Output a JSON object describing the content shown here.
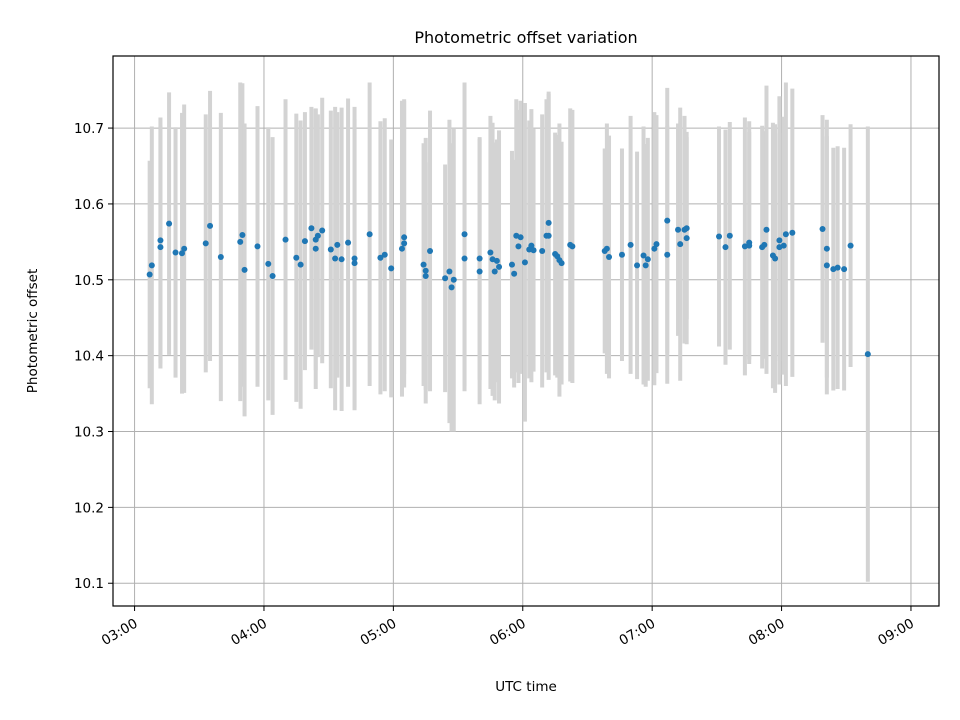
{
  "chart_data": {
    "type": "scatter",
    "title": "Photometric offset variation",
    "xlabel": "UTC time",
    "ylabel": "Photometric offset",
    "x_ticks": [
      "03:00",
      "04:00",
      "05:00",
      "06:00",
      "07:00",
      "08:00",
      "09:00"
    ],
    "y_ticks": [
      "10.1",
      "10.2",
      "10.3",
      "10.4",
      "10.5",
      "10.6",
      "10.7"
    ],
    "xlim": [
      "02:50",
      "09:13"
    ],
    "ylim": [
      10.07,
      10.795
    ],
    "grid": true,
    "colors": {
      "points": "#1f77b4",
      "errorbars": "#d3d3d3",
      "grid": "#b0b0b0"
    },
    "series": [
      {
        "points": [
          {
            "t": "03:07",
            "y": 10.507,
            "err": 0.15
          },
          {
            "t": "03:08",
            "y": 10.519,
            "err": 0.183
          },
          {
            "t": "03:12",
            "y": 10.552,
            "err": 0.162
          },
          {
            "t": "03:12",
            "y": 10.543,
            "err": 0.16
          },
          {
            "t": "03:16",
            "y": 10.574,
            "err": 0.173
          },
          {
            "t": "03:19",
            "y": 10.536,
            "err": 0.165
          },
          {
            "t": "03:22",
            "y": 10.535,
            "err": 0.185
          },
          {
            "t": "03:23",
            "y": 10.541,
            "err": 0.19
          },
          {
            "t": "03:33",
            "y": 10.548,
            "err": 0.17
          },
          {
            "t": "03:35",
            "y": 10.571,
            "err": 0.178
          },
          {
            "t": "03:40",
            "y": 10.53,
            "err": 0.19
          },
          {
            "t": "03:49",
            "y": 10.55,
            "err": 0.21
          },
          {
            "t": "03:50",
            "y": 10.559,
            "err": 0.2
          },
          {
            "t": "03:51",
            "y": 10.513,
            "err": 0.193
          },
          {
            "t": "03:57",
            "y": 10.544,
            "err": 0.185
          },
          {
            "t": "04:02",
            "y": 10.521,
            "err": 0.18
          },
          {
            "t": "04:04",
            "y": 10.505,
            "err": 0.183
          },
          {
            "t": "04:10",
            "y": 10.553,
            "err": 0.185
          },
          {
            "t": "04:15",
            "y": 10.529,
            "err": 0.19
          },
          {
            "t": "04:17",
            "y": 10.52,
            "err": 0.19
          },
          {
            "t": "04:19",
            "y": 10.551,
            "err": 0.17
          },
          {
            "t": "04:22",
            "y": 10.568,
            "err": 0.16
          },
          {
            "t": "04:24",
            "y": 10.541,
            "err": 0.185
          },
          {
            "t": "04:24",
            "y": 10.553,
            "err": 0.172
          },
          {
            "t": "04:25",
            "y": 10.558,
            "err": 0.16
          },
          {
            "t": "04:27",
            "y": 10.565,
            "err": 0.175
          },
          {
            "t": "04:31",
            "y": 10.54,
            "err": 0.183
          },
          {
            "t": "04:33",
            "y": 10.528,
            "err": 0.2
          },
          {
            "t": "04:34",
            "y": 10.546,
            "err": 0.175
          },
          {
            "t": "04:36",
            "y": 10.527,
            "err": 0.2
          },
          {
            "t": "04:39",
            "y": 10.549,
            "err": 0.19
          },
          {
            "t": "04:42",
            "y": 10.528,
            "err": 0.2
          },
          {
            "t": "04:42",
            "y": 10.522,
            "err": 0.19
          },
          {
            "t": "04:49",
            "y": 10.56,
            "err": 0.2
          },
          {
            "t": "04:54",
            "y": 10.529,
            "err": 0.18
          },
          {
            "t": "04:56",
            "y": 10.533,
            "err": 0.18
          },
          {
            "t": "04:59",
            "y": 10.515,
            "err": 0.17
          },
          {
            "t": "05:04",
            "y": 10.541,
            "err": 0.195
          },
          {
            "t": "05:05",
            "y": 10.548,
            "err": 0.19
          },
          {
            "t": "05:05",
            "y": 10.556,
            "err": 0.18
          },
          {
            "t": "05:14",
            "y": 10.52,
            "err": 0.16
          },
          {
            "t": "05:15",
            "y": 10.512,
            "err": 0.175
          },
          {
            "t": "05:15",
            "y": 10.505,
            "err": 0.15
          },
          {
            "t": "05:17",
            "y": 10.538,
            "err": 0.185
          },
          {
            "t": "05:24",
            "y": 10.502,
            "err": 0.15
          },
          {
            "t": "05:26",
            "y": 10.511,
            "err": 0.2
          },
          {
            "t": "05:27",
            "y": 10.49,
            "err": 0.19
          },
          {
            "t": "05:28",
            "y": 10.5,
            "err": 0.2
          },
          {
            "t": "05:33",
            "y": 10.56,
            "err": 0.2
          },
          {
            "t": "05:33",
            "y": 10.528,
            "err": 0.175
          },
          {
            "t": "05:40",
            "y": 10.511,
            "err": 0.175
          },
          {
            "t": "05:40",
            "y": 10.528,
            "err": 0.16
          },
          {
            "t": "05:45",
            "y": 10.536,
            "err": 0.18
          },
          {
            "t": "05:46",
            "y": 10.527,
            "err": 0.18
          },
          {
            "t": "05:47",
            "y": 10.511,
            "err": 0.17
          },
          {
            "t": "05:48",
            "y": 10.525,
            "err": 0.16
          },
          {
            "t": "05:49",
            "y": 10.517,
            "err": 0.18
          },
          {
            "t": "05:55",
            "y": 10.52,
            "err": 0.15
          },
          {
            "t": "05:56",
            "y": 10.508,
            "err": 0.15
          },
          {
            "t": "05:57",
            "y": 10.558,
            "err": 0.18
          },
          {
            "t": "05:58",
            "y": 10.544,
            "err": 0.18
          },
          {
            "t": "05:59",
            "y": 10.556,
            "err": 0.18
          },
          {
            "t": "06:01",
            "y": 10.523,
            "err": 0.21
          },
          {
            "t": "06:03",
            "y": 10.54,
            "err": 0.17
          },
          {
            "t": "06:04",
            "y": 10.545,
            "err": 0.18
          },
          {
            "t": "06:05",
            "y": 10.539,
            "err": 0.16
          },
          {
            "t": "06:09",
            "y": 10.538,
            "err": 0.18
          },
          {
            "t": "06:11",
            "y": 10.558,
            "err": 0.18
          },
          {
            "t": "06:12",
            "y": 10.575,
            "err": 0.17
          },
          {
            "t": "06:12",
            "y": 10.558,
            "err": 0.19
          },
          {
            "t": "06:15",
            "y": 10.534,
            "err": 0.16
          },
          {
            "t": "06:16",
            "y": 10.531,
            "err": 0.16
          },
          {
            "t": "06:17",
            "y": 10.526,
            "err": 0.18
          },
          {
            "t": "06:18",
            "y": 10.522,
            "err": 0.16
          },
          {
            "t": "06:22",
            "y": 10.546,
            "err": 0.18
          },
          {
            "t": "06:23",
            "y": 10.544,
            "err": 0.18
          },
          {
            "t": "06:38",
            "y": 10.538,
            "err": 0.135
          },
          {
            "t": "06:39",
            "y": 10.541,
            "err": 0.165
          },
          {
            "t": "06:40",
            "y": 10.53,
            "err": 0.16
          },
          {
            "t": "06:46",
            "y": 10.533,
            "err": 0.14
          },
          {
            "t": "06:50",
            "y": 10.546,
            "err": 0.17
          },
          {
            "t": "06:53",
            "y": 10.519,
            "err": 0.15
          },
          {
            "t": "06:56",
            "y": 10.532,
            "err": 0.17
          },
          {
            "t": "06:57",
            "y": 10.519,
            "err": 0.16
          },
          {
            "t": "06:58",
            "y": 10.527,
            "err": 0.16
          },
          {
            "t": "07:01",
            "y": 10.541,
            "err": 0.18
          },
          {
            "t": "07:02",
            "y": 10.547,
            "err": 0.17
          },
          {
            "t": "07:07",
            "y": 10.578,
            "err": 0.175
          },
          {
            "t": "07:07",
            "y": 10.533,
            "err": 0.17
          },
          {
            "t": "07:12",
            "y": 10.566,
            "err": 0.14
          },
          {
            "t": "07:13",
            "y": 10.547,
            "err": 0.18
          },
          {
            "t": "07:15",
            "y": 10.566,
            "err": 0.15
          },
          {
            "t": "07:16",
            "y": 10.568,
            "err": 0.12
          },
          {
            "t": "07:16",
            "y": 10.555,
            "err": 0.14
          },
          {
            "t": "07:31",
            "y": 10.557,
            "err": 0.145
          },
          {
            "t": "07:34",
            "y": 10.543,
            "err": 0.155
          },
          {
            "t": "07:36",
            "y": 10.558,
            "err": 0.15
          },
          {
            "t": "07:43",
            "y": 10.544,
            "err": 0.17
          },
          {
            "t": "07:45",
            "y": 10.545,
            "err": 0.15
          },
          {
            "t": "07:45",
            "y": 10.549,
            "err": 0.16
          },
          {
            "t": "07:51",
            "y": 10.543,
            "err": 0.16
          },
          {
            "t": "07:52",
            "y": 10.546,
            "err": 0.15
          },
          {
            "t": "07:53",
            "y": 10.566,
            "err": 0.19
          },
          {
            "t": "07:56",
            "y": 10.532,
            "err": 0.175
          },
          {
            "t": "07:57",
            "y": 10.528,
            "err": 0.177
          },
          {
            "t": "07:59",
            "y": 10.543,
            "err": 0.15
          },
          {
            "t": "07:59",
            "y": 10.552,
            "err": 0.19
          },
          {
            "t": "08:01",
            "y": 10.545,
            "err": 0.17
          },
          {
            "t": "08:02",
            "y": 10.56,
            "err": 0.2
          },
          {
            "t": "08:05",
            "y": 10.562,
            "err": 0.19
          },
          {
            "t": "08:19",
            "y": 10.567,
            "err": 0.15
          },
          {
            "t": "08:21",
            "y": 10.541,
            "err": 0.17
          },
          {
            "t": "08:21",
            "y": 10.519,
            "err": 0.17
          },
          {
            "t": "08:24",
            "y": 10.514,
            "err": 0.16
          },
          {
            "t": "08:26",
            "y": 10.516,
            "err": 0.16
          },
          {
            "t": "08:29",
            "y": 10.514,
            "err": 0.16
          },
          {
            "t": "08:32",
            "y": 10.545,
            "err": 0.16
          },
          {
            "t": "08:40",
            "y": 10.402,
            "err": 0.3
          }
        ]
      }
    ]
  }
}
